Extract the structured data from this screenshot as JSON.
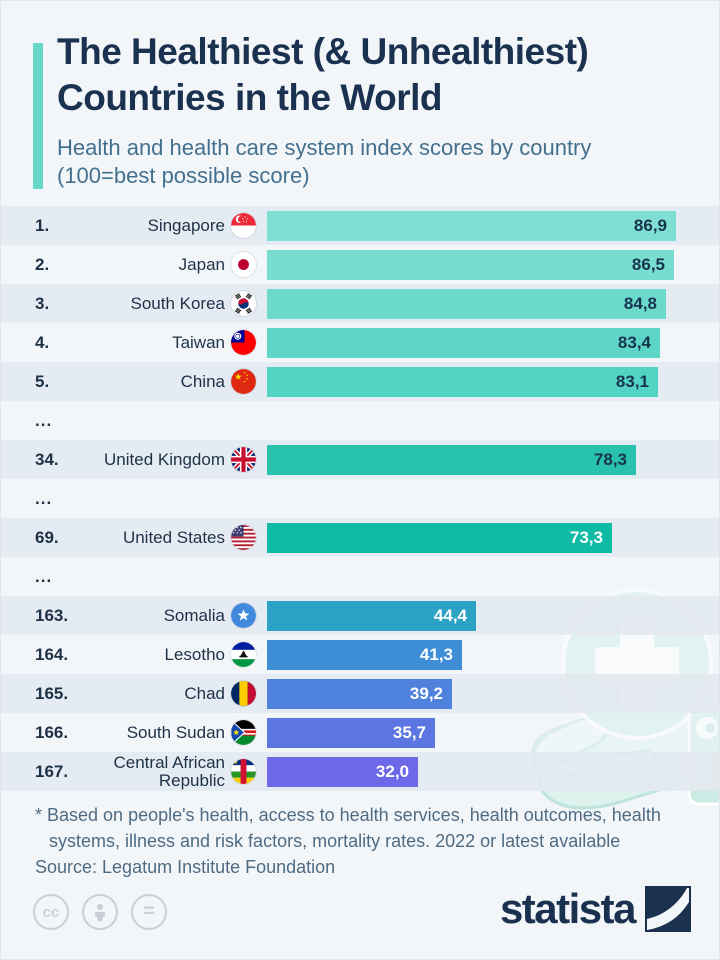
{
  "header": {
    "title_line1": "The Healthiest (& Unhealthiest)",
    "title_line2": "Countries in the World",
    "subtitle_line1": "Health and health care system index scores by country",
    "subtitle_line2": "(100=best possible score)",
    "accent_color": "#67D7C8"
  },
  "chart_data": {
    "type": "bar",
    "orientation": "horizontal",
    "title": "Health and health care system index scores by country",
    "value_range": [
      0,
      100
    ],
    "value_note": "100=best possible score, decimal comma formatting",
    "grid": false,
    "rows": [
      {
        "rank": "1.",
        "country": "Singapore",
        "flag": "sg",
        "value": 86.9,
        "label": "86,9",
        "bar_color": "#80DFD3",
        "label_color": "#17344F",
        "band": "dark"
      },
      {
        "rank": "2.",
        "country": "Japan",
        "flag": "jp",
        "value": 86.5,
        "label": "86,5",
        "bar_color": "#77DDD0",
        "label_color": "#17344F",
        "band": "light"
      },
      {
        "rank": "3.",
        "country": "South Korea",
        "flag": "kr",
        "value": 84.8,
        "label": "84,8",
        "bar_color": "#6BDACB",
        "label_color": "#17344F",
        "band": "dark"
      },
      {
        "rank": "4.",
        "country": "Taiwan",
        "flag": "tw",
        "value": 83.4,
        "label": "83,4",
        "bar_color": "#5ED6C7",
        "label_color": "#17344F",
        "band": "light"
      },
      {
        "rank": "5.",
        "country": "China",
        "flag": "cn",
        "value": 83.1,
        "label": "83,1",
        "bar_color": "#52D3C3",
        "label_color": "#17344F",
        "band": "dark"
      },
      {
        "gap": true,
        "rank": "...",
        "band": "light"
      },
      {
        "rank": "34.",
        "country": "United Kingdom",
        "flag": "gb",
        "value": 78.3,
        "label": "78,3",
        "bar_color": "#28C2AD",
        "label_color": "#17344F",
        "band": "dark"
      },
      {
        "gap": true,
        "rank": "...",
        "band": "light"
      },
      {
        "rank": "69.",
        "country": "United States",
        "flag": "us",
        "value": 73.3,
        "label": "73,3",
        "bar_color": "#10BBA5",
        "label_color": "#FFFFFF",
        "band": "dark"
      },
      {
        "gap": true,
        "rank": "...",
        "band": "light"
      },
      {
        "rank": "163.",
        "country": "Somalia",
        "flag": "so",
        "value": 44.4,
        "label": "44,4",
        "bar_color": "#2CA2C4",
        "label_color": "#FFFFFF",
        "band": "dark"
      },
      {
        "rank": "164.",
        "country": "Lesotho",
        "flag": "ls",
        "value": 41.3,
        "label": "41,3",
        "bar_color": "#3D8ED6",
        "label_color": "#FFFFFF",
        "band": "light"
      },
      {
        "rank": "165.",
        "country": "Chad",
        "flag": "td",
        "value": 39.2,
        "label": "39,2",
        "bar_color": "#4E82DC",
        "label_color": "#FFFFFF",
        "band": "dark"
      },
      {
        "rank": "166.",
        "country": "South Sudan",
        "flag": "ss",
        "value": 35.7,
        "label": "35,7",
        "bar_color": "#5B75E1",
        "label_color": "#FFFFFF",
        "band": "light"
      },
      {
        "rank": "167.",
        "country": "Central African Republic",
        "flag": "cf",
        "value": 32.0,
        "label": "32,0",
        "bar_color": "#6C68E7",
        "label_color": "#FFFFFF",
        "band": "dark"
      }
    ]
  },
  "footer": {
    "footnote_line1": "* Based on people's health, access to health services, health outcomes, health",
    "footnote_line2": "systems, illness and risk factors, mortality rates. 2022 or latest available",
    "source": "Source: Legatum Institute Foundation",
    "cc_icons": [
      "cc-icon",
      "attribution-person-icon",
      "equal-icon"
    ],
    "cc_label_1": "cc",
    "cc_label_3": "="
  },
  "branding": {
    "wordmark": "statista",
    "logo": "statista-logo",
    "navy": "#1B3150"
  },
  "decoration": {
    "items": [
      "medical-cross-circle",
      "open-hand",
      "first-aid-kit"
    ],
    "mint": "#CFEDE7"
  }
}
